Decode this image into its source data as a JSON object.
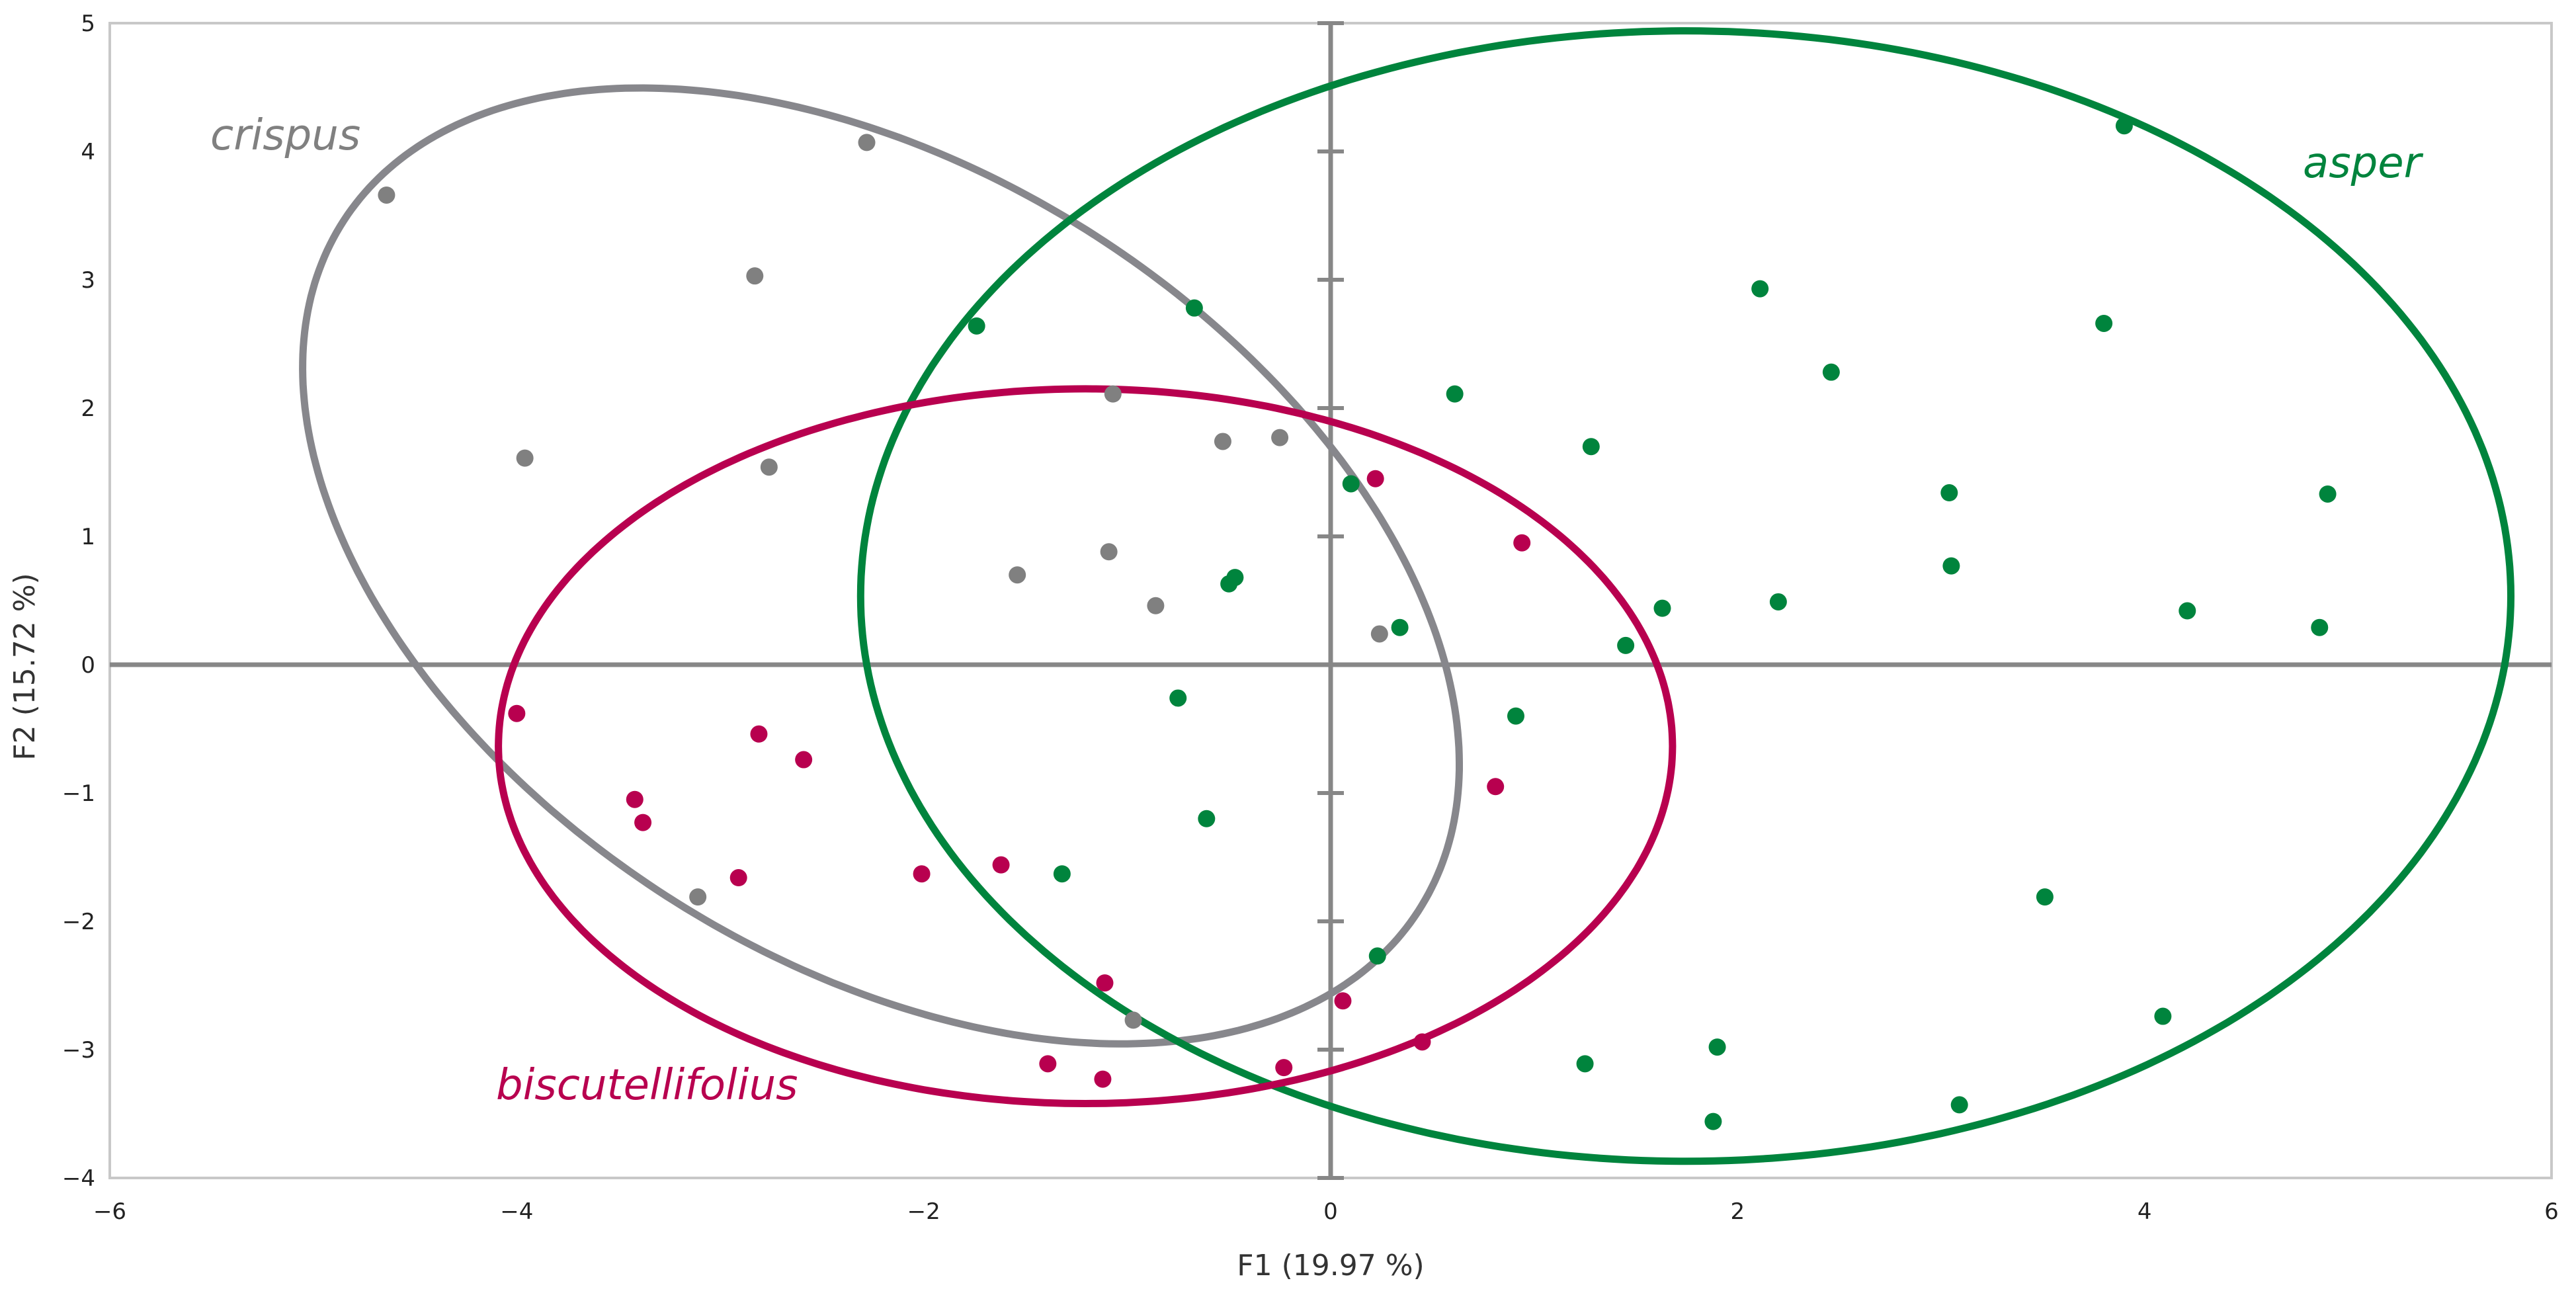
{
  "chart_data": {
    "type": "scatter",
    "x_label": "F1 (19.97 %)",
    "y_label": "F2 (15.72 %)",
    "xlim": [
      -6,
      6
    ],
    "xticks": [
      {
        "value": -6,
        "label": "−6"
      },
      {
        "value": -4,
        "label": "−4"
      },
      {
        "value": -2,
        "label": "−2"
      },
      0,
      2,
      4,
      6
    ],
    "ylim": [
      -4,
      5
    ],
    "yticks": [
      {
        "value": -4,
        "label": "−4"
      },
      {
        "value": -3,
        "label": "−3"
      },
      {
        "value": -2,
        "label": "−2"
      },
      {
        "value": -1,
        "label": "−1"
      },
      0,
      1,
      2,
      3,
      4,
      5
    ],
    "grid": false,
    "series": [
      {
        "name": "crispus",
        "color": "#808080",
        "ellipse_color": "#87878c",
        "x": [
          -4.64,
          -2.28,
          -2.83,
          -3.96,
          -2.76,
          -1.07,
          -0.53,
          -0.25,
          -1.54,
          -1.09,
          -0.86,
          0.24,
          -3.11,
          -0.97
        ],
        "y": [
          3.66,
          4.07,
          3.03,
          1.61,
          1.54,
          2.11,
          1.74,
          1.77,
          0.7,
          0.88,
          0.46,
          0.24,
          -1.81,
          -2.77
        ],
        "ellipse": {
          "cx": -2.21,
          "cy": 0.77,
          "rx": 4.03,
          "ry": 2.39,
          "angle": 118.3
        }
      },
      {
        "name": "asper",
        "color": "#00843d",
        "ellipse_color": "#00843d",
        "x": [
          -1.74,
          -0.67,
          0.61,
          0.1,
          -0.47,
          -0.5,
          0.34,
          -0.75,
          -0.61,
          -1.32,
          0.23,
          0.91,
          1.45,
          1.63,
          1.28,
          2.11,
          2.46,
          2.2,
          3.04,
          3.05,
          3.9,
          3.8,
          4.9,
          4.21,
          4.86,
          3.51,
          4.09,
          3.09,
          1.9,
          1.88,
          1.25
        ],
        "y": [
          2.64,
          2.78,
          2.11,
          1.41,
          0.68,
          0.63,
          0.29,
          -0.26,
          -1.2,
          -1.63,
          -2.27,
          -0.4,
          0.15,
          0.44,
          1.7,
          2.93,
          2.28,
          0.49,
          1.34,
          0.77,
          4.2,
          2.66,
          1.33,
          0.42,
          0.29,
          -1.81,
          -2.74,
          -3.43,
          -2.98,
          -3.56,
          -3.11
        ],
        "ellipse": {
          "cx": 1.745,
          "cy": 0.535,
          "rx": 4.055,
          "ry": 4.405,
          "angle": 0
        }
      },
      {
        "name": "biscutellifolius",
        "color": "#b8004f",
        "ellipse_color": "#b8004f",
        "x": [
          0.22,
          0.94,
          0.81,
          -4.0,
          -2.81,
          -2.59,
          -3.42,
          -3.38,
          -2.91,
          -2.01,
          -1.62,
          -1.11,
          0.06,
          0.45,
          -0.23,
          -1.39,
          -1.12
        ],
        "y": [
          1.45,
          0.95,
          -0.95,
          -0.38,
          -0.54,
          -0.74,
          -1.05,
          -1.23,
          -1.66,
          -1.63,
          -1.56,
          -2.48,
          -2.62,
          -2.94,
          -3.14,
          -3.11,
          -3.23
        ],
        "ellipse": {
          "cx": -1.205,
          "cy": -0.635,
          "rx": 2.885,
          "ry": 2.785,
          "angle": 0
        }
      }
    ]
  }
}
